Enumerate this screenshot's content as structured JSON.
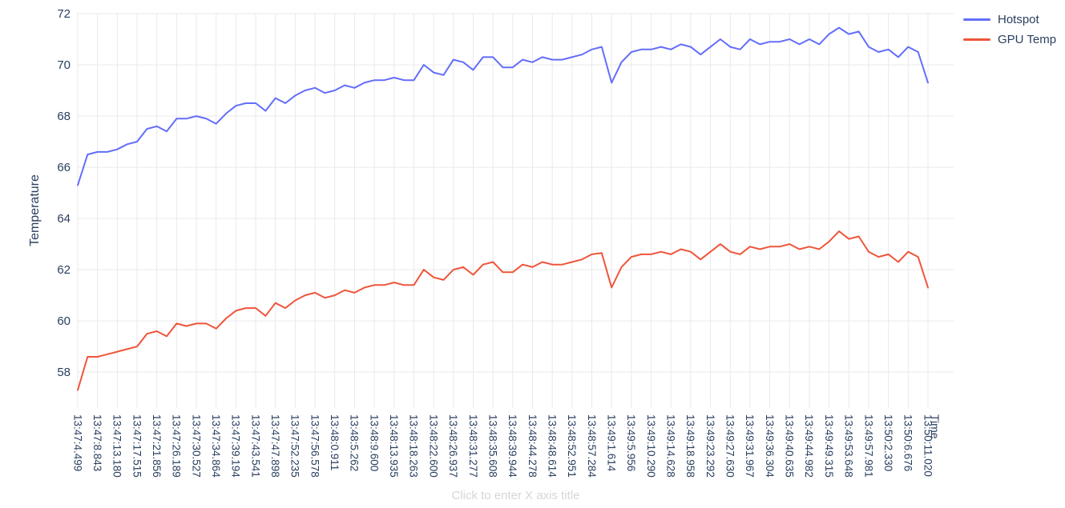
{
  "ui": {
    "x_axis_placeholder": "Click to enter X axis title"
  },
  "chart_data": {
    "type": "line",
    "title": "",
    "xlabel": "Time",
    "ylabel": "Temperature",
    "ylim": [
      56.6,
      72
    ],
    "yticks": [
      58,
      60,
      62,
      64,
      66,
      68,
      70,
      72
    ],
    "grid": true,
    "legend_position": "top-right",
    "grid_color": "#e9e9ec",
    "font_color": "#2a3f5f",
    "x_labels_every": 2,
    "x_tick_labels": [
      "13:47:4.499",
      "13:47:8.843",
      "13:47:13.180",
      "13:47:17.515",
      "13:47:21.856",
      "13:47:26.189",
      "13:47:30.527",
      "13:47:34.864",
      "13:47:39.194",
      "13:47:43.541",
      "13:47:47.898",
      "13:47:52.235",
      "13:47:56.578",
      "13:48:0.911",
      "13:48:5.262",
      "13:48:9.600",
      "13:48:13.935",
      "13:48:18.263",
      "13:48:22.600",
      "13:48:26.937",
      "13:48:31.277",
      "13:48:35.608",
      "13:48:39.944",
      "13:48:44.278",
      "13:48:48.614",
      "13:48:52.951",
      "13:48:57.284",
      "13:49:1.614",
      "13:49:5.956",
      "13:49:10.290",
      "13:49:14.628",
      "13:49:18.958",
      "13:49:23.292",
      "13:49:27.630",
      "13:49:31.967",
      "13:49:36.304",
      "13:49:40.635",
      "13:49:44.982",
      "13:49:49.315",
      "13:49:53.648",
      "13:49:57.981",
      "13:50:2.330",
      "13:50:6.676",
      "13:50:11.020"
    ],
    "series": [
      {
        "name": "Hotspot",
        "color": "#636EFA",
        "values": [
          65.3,
          66.5,
          66.6,
          66.6,
          66.7,
          66.9,
          67.0,
          67.5,
          67.6,
          67.4,
          67.9,
          67.9,
          68.0,
          67.9,
          67.7,
          68.1,
          68.4,
          68.5,
          68.5,
          68.2,
          68.7,
          68.5,
          68.8,
          69.0,
          69.1,
          68.9,
          69.0,
          69.2,
          69.1,
          69.3,
          69.4,
          69.4,
          69.5,
          69.4,
          69.4,
          70.0,
          69.7,
          69.6,
          70.2,
          70.1,
          69.8,
          70.3,
          70.3,
          69.9,
          69.9,
          70.2,
          70.1,
          70.3,
          70.2,
          70.2,
          70.3,
          70.4,
          70.6,
          70.7,
          69.3,
          70.1,
          70.5,
          70.6,
          70.6,
          70.7,
          70.6,
          70.8,
          70.7,
          70.4,
          70.7,
          71.0,
          70.7,
          70.6,
          71.0,
          70.8,
          70.9,
          70.9,
          71.0,
          70.8,
          71.0,
          70.8,
          71.2,
          71.45,
          71.2,
          71.3,
          70.7,
          70.5,
          70.6,
          70.3,
          70.7,
          70.5,
          69.3
        ]
      },
      {
        "name": "GPU Temp",
        "color": "#EF553B",
        "values": [
          57.3,
          58.6,
          58.6,
          58.7,
          58.8,
          58.9,
          59.0,
          59.5,
          59.6,
          59.4,
          59.9,
          59.8,
          59.9,
          59.9,
          59.7,
          60.1,
          60.4,
          60.5,
          60.5,
          60.2,
          60.7,
          60.5,
          60.8,
          61.0,
          61.1,
          60.9,
          61.0,
          61.2,
          61.1,
          61.3,
          61.4,
          61.4,
          61.5,
          61.4,
          61.4,
          62.0,
          61.7,
          61.6,
          62.0,
          62.1,
          61.8,
          62.2,
          62.3,
          61.9,
          61.9,
          62.2,
          62.1,
          62.3,
          62.2,
          62.2,
          62.3,
          62.4,
          62.6,
          62.65,
          61.3,
          62.1,
          62.5,
          62.6,
          62.6,
          62.7,
          62.6,
          62.8,
          62.7,
          62.4,
          62.7,
          63.0,
          62.7,
          62.6,
          62.9,
          62.8,
          62.9,
          62.9,
          63.0,
          62.8,
          62.9,
          62.8,
          63.1,
          63.5,
          63.2,
          63.3,
          62.7,
          62.5,
          62.6,
          62.3,
          62.7,
          62.5,
          61.3
        ]
      }
    ]
  }
}
